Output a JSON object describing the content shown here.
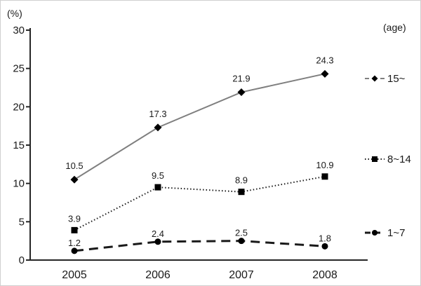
{
  "chart_data": {
    "type": "line",
    "title": "",
    "unit_label": "(%)",
    "legend_title": "(age)",
    "xlabel": "",
    "ylabel": "(%)",
    "categories": [
      "2005",
      "2006",
      "2007",
      "2008"
    ],
    "series": [
      {
        "name": "15~",
        "values": [
          10.5,
          17.3,
          21.9,
          24.3
        ],
        "line_style": "solid",
        "line_color": "#7f7f7f",
        "marker": "diamond",
        "marker_color": "#000000"
      },
      {
        "name": "8~14",
        "values": [
          3.9,
          9.5,
          8.9,
          10.9
        ],
        "line_style": "dotted",
        "line_color": "#1a1a1a",
        "marker": "square",
        "marker_color": "#000000"
      },
      {
        "name": "1~7",
        "values": [
          1.2,
          2.4,
          2.5,
          1.8
        ],
        "line_style": "dashed",
        "line_color": "#1a1a1a",
        "marker": "circle",
        "marker_color": "#000000"
      }
    ],
    "ylim": [
      0,
      30
    ],
    "yticks": [
      0,
      5,
      10,
      15,
      20,
      25,
      30
    ],
    "grid": false,
    "legend_position": "right",
    "data_labels_visible": true,
    "axis_color": "#262626",
    "label_color": "#333333"
  }
}
